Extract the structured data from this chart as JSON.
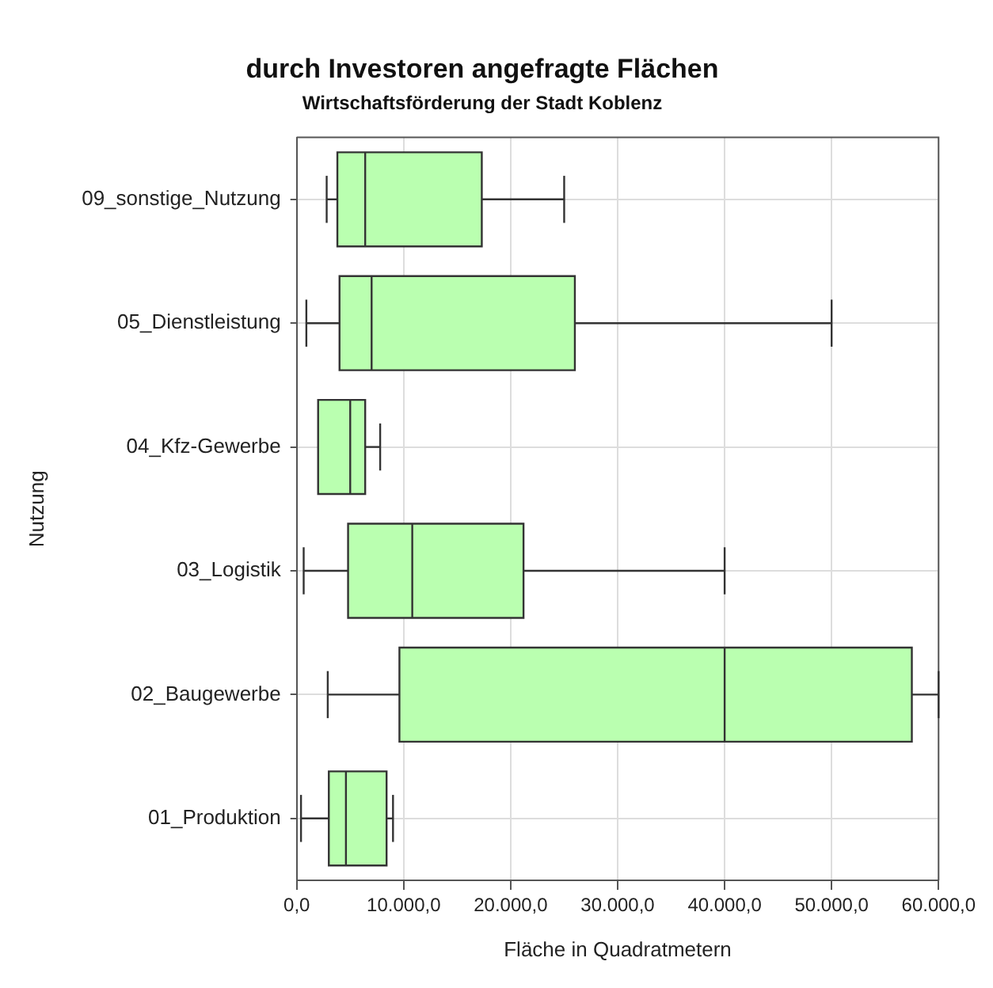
{
  "chart_data": {
    "type": "box",
    "orientation": "horizontal",
    "title": "durch Investoren angefragte Flächen",
    "subtitle": "Wirtschaftsförderung der Stadt Koblenz",
    "xlabel": "Fläche in Quadratmetern",
    "ylabel": "Nutzung",
    "categories": [
      "09_sonstige_Nutzung",
      "05_Dienstleistung",
      "04_Kfz-Gewerbe",
      "03_Logistik",
      "02_Baugewerbe",
      "01_Produktion"
    ],
    "color": "#baffb0",
    "boxes": [
      {
        "low": 2800,
        "q1": 3800,
        "median": 6400,
        "q3": 17300,
        "high": 25000
      },
      {
        "low": 900,
        "q1": 4000,
        "median": 7000,
        "q3": 26000,
        "high": 50000
      },
      {
        "low": 2000,
        "q1": 2000,
        "median": 5000,
        "q3": 6400,
        "high": 7800
      },
      {
        "low": 650,
        "q1": 4800,
        "median": 10800,
        "q3": 21200,
        "high": 40000
      },
      {
        "low": 2900,
        "q1": 9600,
        "median": 40000,
        "q3": 57500,
        "high": 60000
      },
      {
        "low": 400,
        "q1": 3000,
        "median": 4600,
        "q3": 8400,
        "high": 9000
      }
    ],
    "xlim": [
      0,
      60000
    ],
    "xticks": [
      {
        "value": 0,
        "label": "0,0"
      },
      {
        "value": 10000,
        "label": "10.000,0"
      },
      {
        "value": 20000,
        "label": "20.000,0"
      },
      {
        "value": 30000,
        "label": "30.000,0"
      },
      {
        "value": 40000,
        "label": "40.000,0"
      },
      {
        "value": 50000,
        "label": "50.000,0"
      },
      {
        "value": 60000,
        "label": "60.000,0"
      }
    ],
    "grid": true,
    "legend": false
  }
}
